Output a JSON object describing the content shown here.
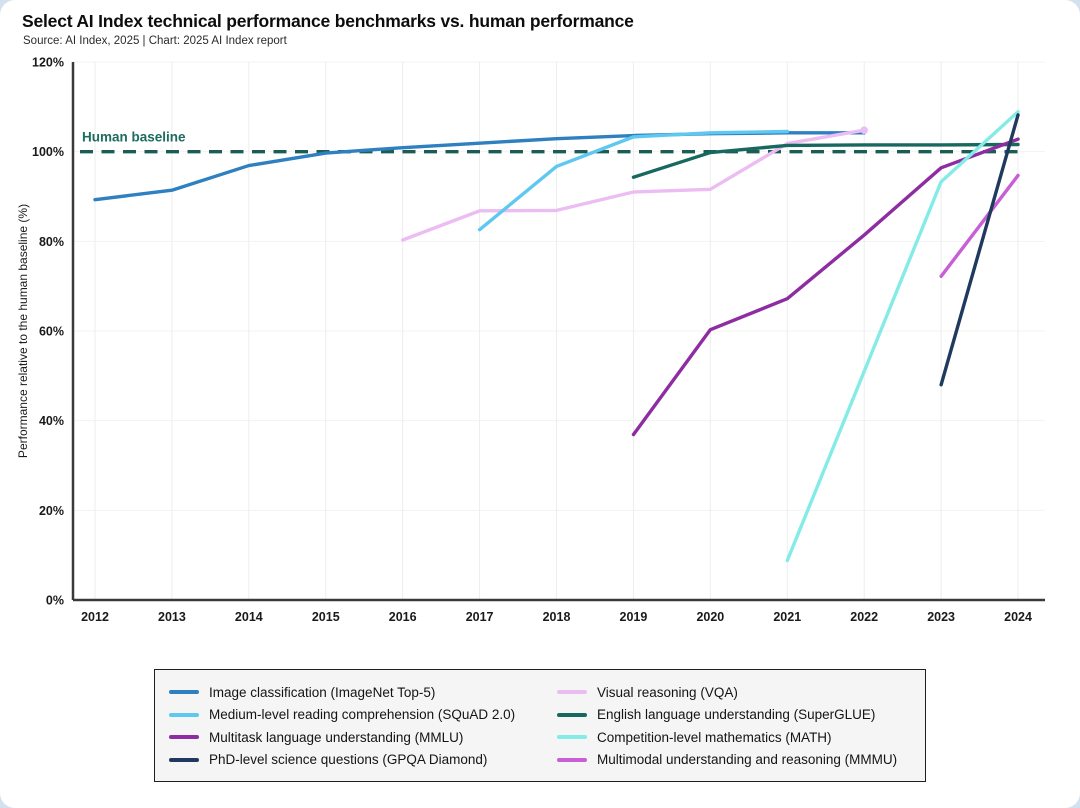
{
  "header": {
    "title": "Select AI Index technical performance benchmarks vs. human performance",
    "source": "Source: AI Index, 2025 | Chart: 2025 AI Index report"
  },
  "chart_data": {
    "type": "line",
    "title": "Select AI Index technical performance benchmarks vs. human performance",
    "xlabel": "",
    "ylabel": "Performance relative to the human baseline (%)",
    "ylim": [
      0,
      120
    ],
    "y_tick_step": 20,
    "x_ticks": [
      2012,
      2013,
      2014,
      2015,
      2016,
      2017,
      2018,
      2019,
      2020,
      2021,
      2022,
      2023,
      2024
    ],
    "grid": true,
    "legend_position": "bottom",
    "baseline": {
      "label": "Human baseline",
      "value": 100,
      "color": "#1b5c55",
      "label_color": "#1e6b60",
      "style": "dashed"
    },
    "series": [
      {
        "name": "Image classification (ImageNet Top-5)",
        "color": "#2e80c0",
        "x": [
          2012,
          2013,
          2014,
          2015,
          2016,
          2017,
          2018,
          2019,
          2020,
          2021,
          2022
        ],
        "values": [
          89.3,
          91.4,
          96.9,
          99.7,
          100.9,
          101.9,
          102.9,
          103.6,
          104.0,
          104.2,
          104.2
        ]
      },
      {
        "name": "Medium-level reading comprehension (SQuAD 2.0)",
        "color": "#5fc8f0",
        "x": [
          2017,
          2018,
          2019,
          2020,
          2021
        ],
        "values": [
          82.6,
          96.7,
          103.3,
          104.2,
          104.5
        ]
      },
      {
        "name": "Multitask language understanding (MMLU)",
        "color": "#8e2da1",
        "x": [
          2019,
          2020,
          2021,
          2022,
          2023,
          2024
        ],
        "values": [
          36.9,
          60.3,
          67.2,
          81.4,
          96.4,
          102.8
        ]
      },
      {
        "name": "PhD-level science questions (GPQA Diamond)",
        "color": "#20395e",
        "x": [
          2023,
          2024
        ],
        "values": [
          48.0,
          108.2
        ]
      },
      {
        "name": "Visual reasoning (VQA)",
        "color": "#ecbdf2",
        "x": [
          2016,
          2017,
          2018,
          2019,
          2020,
          2021,
          2022
        ],
        "values": [
          80.3,
          86.8,
          86.9,
          91.0,
          91.6,
          101.8,
          104.8
        ],
        "end_dot": true
      },
      {
        "name": "English language understanding (SuperGLUE)",
        "color": "#17695f",
        "x": [
          2019,
          2020,
          2021,
          2022,
          2023,
          2024
        ],
        "values": [
          94.3,
          99.8,
          101.4,
          101.5,
          101.5,
          101.6
        ]
      },
      {
        "name": "Competition-level mathematics (MATH)",
        "color": "#84ebe6",
        "x": [
          2021,
          2022,
          2023,
          2024
        ],
        "values": [
          8.8,
          51.0,
          93.3,
          108.9
        ]
      },
      {
        "name": "Multimodal understanding and reasoning (MMMU)",
        "color": "#c95fd6",
        "x": [
          2023,
          2024
        ],
        "values": [
          72.2,
          94.7
        ]
      }
    ],
    "draw_order": [
      0,
      4,
      1,
      5,
      2,
      6,
      7,
      3
    ]
  },
  "colors": {
    "page_background": "#d3e1ef",
    "card_background": "#ffffff",
    "legend_background": "#f5f5f6",
    "legend_border": "#1f1f1f",
    "axis": "#3a3a3a",
    "gridline": "#ededed",
    "tick_text": "#1a1a1a"
  }
}
